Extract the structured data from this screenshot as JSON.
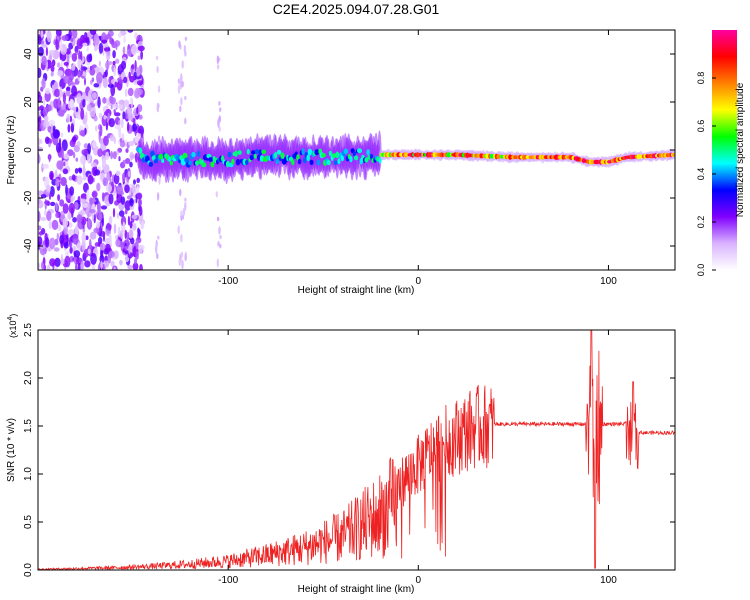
{
  "page_title": "C2E4.2025.094.07.28.G01",
  "chart_data": [
    {
      "type": "heatmap",
      "title": "C2E4.2025.094.07.28.G01",
      "xlabel": "Height of straight line (km)",
      "ylabel": "Frequency (Hz)",
      "xlim": [
        -200,
        135
      ],
      "ylim": [
        -50,
        50
      ],
      "x_ticks": [
        -100,
        0,
        100
      ],
      "y_ticks": [
        -40,
        -20,
        0,
        20,
        40
      ],
      "colorbar": {
        "label": "Normalized spectral amplitude",
        "range": [
          0,
          1
        ],
        "ticks": [
          "0.0",
          "0.2",
          "0.4",
          "0.6",
          "0.8"
        ],
        "colors": [
          "#ffffff",
          "#d9b3ff",
          "#8000ff",
          "#0000ff",
          "#00ffff",
          "#00ff00",
          "#ffff00",
          "#ff8000",
          "#ff0000",
          "#ff00a0"
        ]
      },
      "ridge": {
        "description_points": [
          {
            "x": -145,
            "y": -4
          },
          {
            "x": -100,
            "y": -4
          },
          {
            "x": -80,
            "y": -2
          },
          {
            "x": -60,
            "y": -3
          },
          {
            "x": -40,
            "y": -3
          },
          {
            "x": -20,
            "y": -2
          },
          {
            "x": -10,
            "y": -2
          },
          {
            "x": 0,
            "y": -2
          },
          {
            "x": 20,
            "y": -2
          },
          {
            "x": 50,
            "y": -3
          },
          {
            "x": 80,
            "y": -3
          },
          {
            "x": 90,
            "y": -5
          },
          {
            "x": 100,
            "y": -5
          },
          {
            "x": 110,
            "y": -3
          },
          {
            "x": 135,
            "y": -2
          }
        ]
      }
    },
    {
      "type": "line",
      "xlabel": "Height of straight line (km)",
      "ylabel": "SNR (10 * v/v)",
      "y_multiplier_label": "(x10",
      "y_multiplier_exp": "4",
      "xlim": [
        -200,
        135
      ],
      "ylim": [
        0,
        2.5
      ],
      "x_ticks": [
        -100,
        0,
        100
      ],
      "y_ticks": [
        "0.0",
        "0.5",
        "1.0",
        "1.5",
        "2.0",
        "2.5"
      ],
      "line_color": "#ee2222",
      "series": [
        {
          "name": "SNR",
          "x": [
            -200,
            -180,
            -160,
            -140,
            -120,
            -100,
            -80,
            -70,
            -60,
            -50,
            -40,
            -30,
            -20,
            -15,
            -10,
            -5,
            0,
            5,
            10,
            20,
            30,
            40,
            50,
            60,
            70,
            80,
            85,
            88,
            90,
            92,
            94,
            96,
            100,
            105,
            110,
            115,
            120,
            135
          ],
          "y": [
            0.01,
            0.02,
            0.03,
            0.05,
            0.08,
            0.12,
            0.2,
            0.25,
            0.3,
            0.38,
            0.45,
            0.6,
            0.75,
            0.85,
            0.9,
            1.0,
            1.1,
            1.2,
            1.3,
            1.4,
            1.5,
            1.52,
            1.53,
            1.53,
            1.52,
            1.5,
            1.52,
            1.6,
            2.5,
            0.05,
            1.6,
            1.3,
            1.45,
            1.5,
            1.4,
            1.5,
            1.45,
            1.43
          ]
        }
      ],
      "features": {
        "spike_max_x": 91,
        "spike_min_x": 93,
        "secondary_spike_x": 113,
        "secondary_spike_y": 1.96,
        "plateau_level": 1.52
      }
    }
  ]
}
